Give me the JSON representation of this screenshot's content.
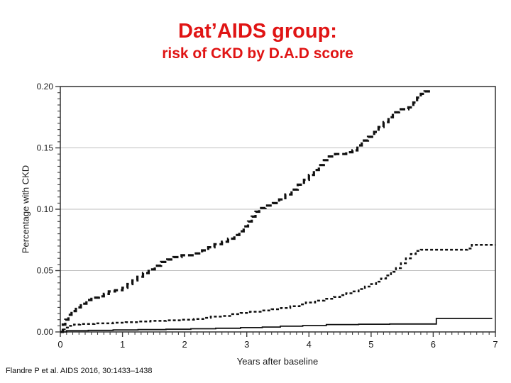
{
  "slide": {
    "title_line1": "Dat’AIDS group:",
    "title_line2": "risk of CKD by D.A.D score",
    "title_color": "#e01414",
    "citation": "Flandre P et al. AIDS 2016, 30:1433–1438"
  },
  "chart_data": {
    "type": "line",
    "subtype": "step-cumulative-incidence",
    "title": "",
    "xlabel": "Years after baseline",
    "ylabel": "Percentage with CKD",
    "xlim": [
      0,
      7
    ],
    "ylim": [
      0,
      0.2
    ],
    "grid": "horizontal gridlines at major y ticks, light gray",
    "legend_position": "none",
    "frame": "full box with outward ticks on left and bottom",
    "axis_color": "#3d3d3d",
    "grid_color": "#bfbfbf",
    "curve_color": "#111111",
    "x_ticks": {
      "major": [
        0,
        1,
        2,
        3,
        4,
        5,
        6,
        7
      ],
      "labels": [
        "0",
        "1",
        "2",
        "3",
        "4",
        "5",
        "6",
        "7"
      ],
      "minor_interval": 0.1
    },
    "y_ticks": {
      "major": [
        0.0,
        0.05,
        0.1,
        0.15,
        0.2
      ],
      "labels": [
        "0.00",
        "0.05",
        "0.10",
        "0.15",
        "0.20"
      ],
      "minor_interval": 0.005
    },
    "series": [
      {
        "name": "bold-dashed-curve-highest",
        "line_style": "dash-bold",
        "color": "#111111",
        "points": [
          [
            0,
            0
          ],
          [
            0.04,
            0.006
          ],
          [
            0.08,
            0.01
          ],
          [
            0.13,
            0.014
          ],
          [
            0.18,
            0.017
          ],
          [
            0.25,
            0.02
          ],
          [
            0.33,
            0.023
          ],
          [
            0.42,
            0.026
          ],
          [
            0.5,
            0.028
          ],
          [
            0.62,
            0.029
          ],
          [
            0.7,
            0.031
          ],
          [
            0.78,
            0.033
          ],
          [
            0.88,
            0.034
          ],
          [
            1.0,
            0.036
          ],
          [
            1.08,
            0.039
          ],
          [
            1.16,
            0.042
          ],
          [
            1.24,
            0.045
          ],
          [
            1.33,
            0.048
          ],
          [
            1.42,
            0.051
          ],
          [
            1.52,
            0.054
          ],
          [
            1.62,
            0.057
          ],
          [
            1.72,
            0.059
          ],
          [
            1.82,
            0.061
          ],
          [
            1.95,
            0.0625
          ],
          [
            2.18,
            0.064
          ],
          [
            2.28,
            0.0665
          ],
          [
            2.38,
            0.069
          ],
          [
            2.48,
            0.0715
          ],
          [
            2.6,
            0.0735
          ],
          [
            2.7,
            0.076
          ],
          [
            2.8,
            0.079
          ],
          [
            2.88,
            0.082
          ],
          [
            2.95,
            0.086
          ],
          [
            3.02,
            0.09
          ],
          [
            3.08,
            0.094
          ],
          [
            3.14,
            0.098
          ],
          [
            3.2,
            0.101
          ],
          [
            3.3,
            0.103
          ],
          [
            3.42,
            0.105
          ],
          [
            3.52,
            0.108
          ],
          [
            3.62,
            0.112
          ],
          [
            3.72,
            0.116
          ],
          [
            3.82,
            0.12
          ],
          [
            3.92,
            0.124
          ],
          [
            4.0,
            0.128
          ],
          [
            4.08,
            0.132
          ],
          [
            4.16,
            0.136
          ],
          [
            4.24,
            0.14
          ],
          [
            4.32,
            0.143
          ],
          [
            4.42,
            0.145
          ],
          [
            4.6,
            0.1465
          ],
          [
            4.7,
            0.148
          ],
          [
            4.78,
            0.152
          ],
          [
            4.85,
            0.156
          ],
          [
            4.95,
            0.159
          ],
          [
            5.05,
            0.163
          ],
          [
            5.12,
            0.167
          ],
          [
            5.2,
            0.171
          ],
          [
            5.28,
            0.175
          ],
          [
            5.35,
            0.179
          ],
          [
            5.45,
            0.1815
          ],
          [
            5.6,
            0.183
          ],
          [
            5.68,
            0.187
          ],
          [
            5.74,
            0.191
          ],
          [
            5.8,
            0.194
          ],
          [
            5.86,
            0.196
          ],
          [
            5.95,
            0.197
          ]
        ]
      },
      {
        "name": "dashed-curve-intermediate",
        "line_style": "dash",
        "color": "#111111",
        "points": [
          [
            0,
            0
          ],
          [
            0.04,
            0.002
          ],
          [
            0.09,
            0.0035
          ],
          [
            0.14,
            0.005
          ],
          [
            0.22,
            0.006
          ],
          [
            0.32,
            0.0065
          ],
          [
            0.55,
            0.007
          ],
          [
            0.85,
            0.0075
          ],
          [
            1.05,
            0.008
          ],
          [
            1.25,
            0.0085
          ],
          [
            1.45,
            0.009
          ],
          [
            1.7,
            0.0095
          ],
          [
            1.95,
            0.01
          ],
          [
            2.15,
            0.0105
          ],
          [
            2.3,
            0.0115
          ],
          [
            2.42,
            0.0125
          ],
          [
            2.6,
            0.013
          ],
          [
            2.75,
            0.0145
          ],
          [
            2.9,
            0.0155
          ],
          [
            3.05,
            0.0165
          ],
          [
            3.25,
            0.0175
          ],
          [
            3.4,
            0.0185
          ],
          [
            3.55,
            0.0195
          ],
          [
            3.7,
            0.021
          ],
          [
            3.85,
            0.0225
          ],
          [
            3.95,
            0.024
          ],
          [
            4.1,
            0.0255
          ],
          [
            4.25,
            0.027
          ],
          [
            4.4,
            0.0285
          ],
          [
            4.5,
            0.03
          ],
          [
            4.6,
            0.0315
          ],
          [
            4.7,
            0.033
          ],
          [
            4.8,
            0.035
          ],
          [
            4.9,
            0.037
          ],
          [
            5.0,
            0.039
          ],
          [
            5.08,
            0.041
          ],
          [
            5.16,
            0.0435
          ],
          [
            5.24,
            0.046
          ],
          [
            5.32,
            0.049
          ],
          [
            5.4,
            0.052
          ],
          [
            5.48,
            0.056
          ],
          [
            5.56,
            0.06
          ],
          [
            5.64,
            0.0635
          ],
          [
            5.72,
            0.066
          ],
          [
            5.8,
            0.067
          ],
          [
            6.55,
            0.068
          ],
          [
            6.62,
            0.071
          ],
          [
            7.0,
            0.071
          ]
        ]
      },
      {
        "name": "solid-curve-lowest",
        "line_style": "solid",
        "color": "#111111",
        "points": [
          [
            0,
            0
          ],
          [
            0.1,
            0.001
          ],
          [
            0.45,
            0.0013
          ],
          [
            0.85,
            0.0016
          ],
          [
            1.25,
            0.0019
          ],
          [
            1.7,
            0.0022
          ],
          [
            2.1,
            0.0026
          ],
          [
            2.5,
            0.003
          ],
          [
            2.9,
            0.0035
          ],
          [
            3.25,
            0.004
          ],
          [
            3.54,
            0.0047
          ],
          [
            3.9,
            0.0052
          ],
          [
            4.28,
            0.006
          ],
          [
            4.8,
            0.0063
          ],
          [
            5.3,
            0.0065
          ],
          [
            6.05,
            0.011
          ],
          [
            6.95,
            0.011
          ]
        ]
      }
    ]
  }
}
